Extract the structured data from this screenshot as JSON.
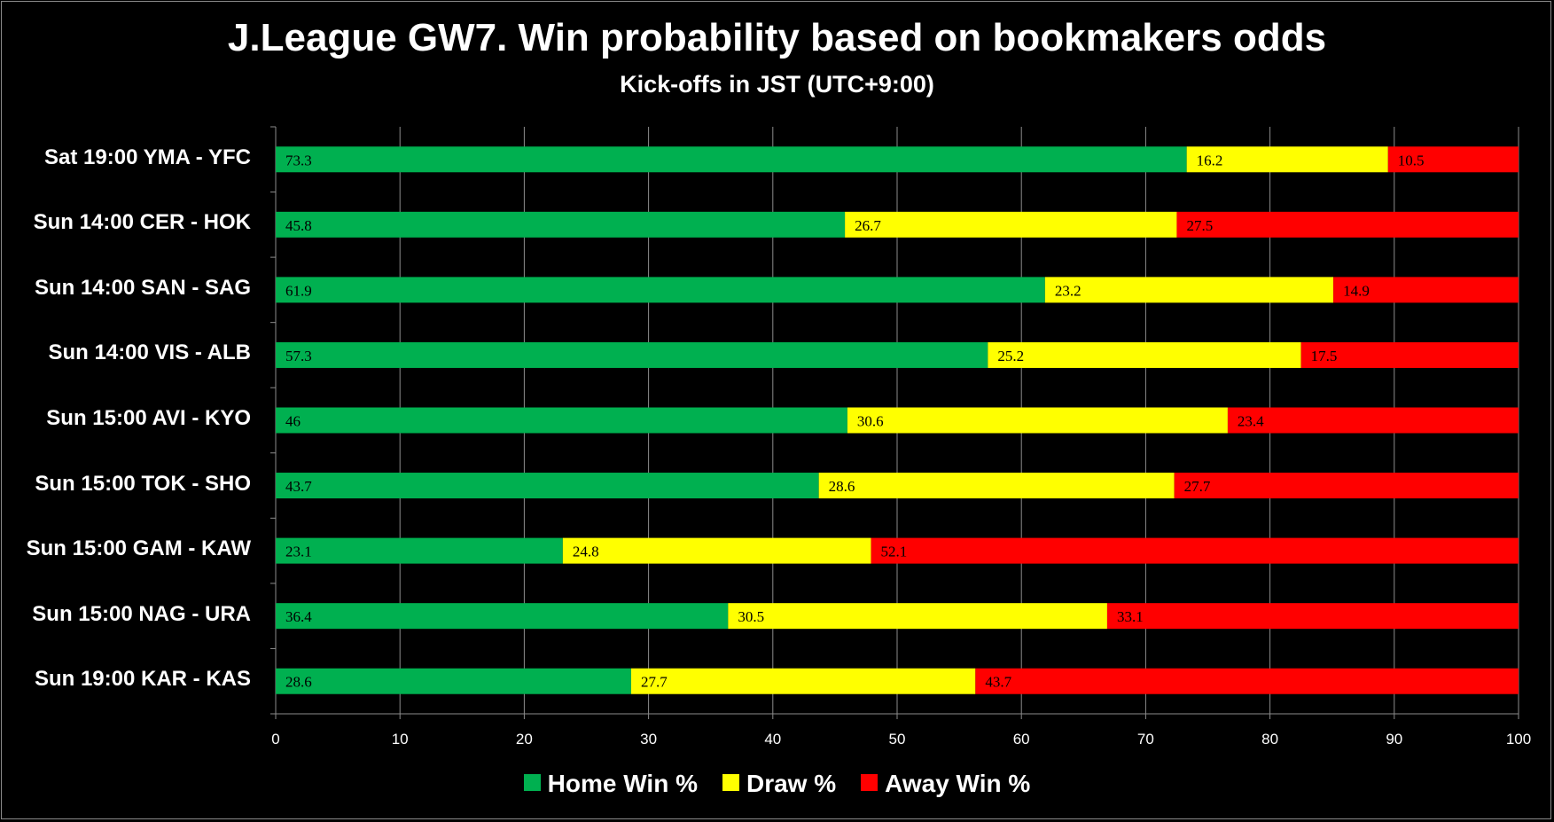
{
  "chart_data": {
    "type": "bar",
    "orientation": "horizontal",
    "stacked": true,
    "title": "J.League GW7. Win probability based on bookmakers odds",
    "subtitle": "Kick-offs in JST (UTC+9:00)",
    "categories": [
      "Sat 19:00 YMA - YFC",
      "Sun 14:00 CER - HOK",
      "Sun 14:00 SAN - SAG",
      "Sun 14:00 VIS - ALB",
      "Sun 15:00 AVI - KYO",
      "Sun 15:00 TOK - SHO",
      "Sun 15:00 GAM - KAW",
      "Sun 15:00 NAG - URA",
      "Sun 19:00 KAR - KAS"
    ],
    "series": [
      {
        "name": "Home Win %",
        "color": "#00b050",
        "values": [
          73.3,
          45.8,
          61.9,
          57.3,
          46,
          43.7,
          23.1,
          36.4,
          28.6
        ]
      },
      {
        "name": "Draw %",
        "color": "#ffff00",
        "values": [
          16.2,
          26.7,
          23.2,
          25.2,
          30.6,
          28.6,
          24.8,
          30.5,
          27.7
        ]
      },
      {
        "name": "Away Win %",
        "color": "#ff0000",
        "values": [
          10.5,
          27.5,
          14.9,
          17.5,
          23.4,
          27.7,
          52.1,
          33.1,
          43.7
        ]
      }
    ],
    "xlim": [
      0,
      100
    ],
    "xticks": [
      0,
      10,
      20,
      30,
      40,
      50,
      60,
      70,
      80,
      90,
      100
    ],
    "grid": "vertical",
    "legend": "bottom",
    "background": "#000000"
  }
}
